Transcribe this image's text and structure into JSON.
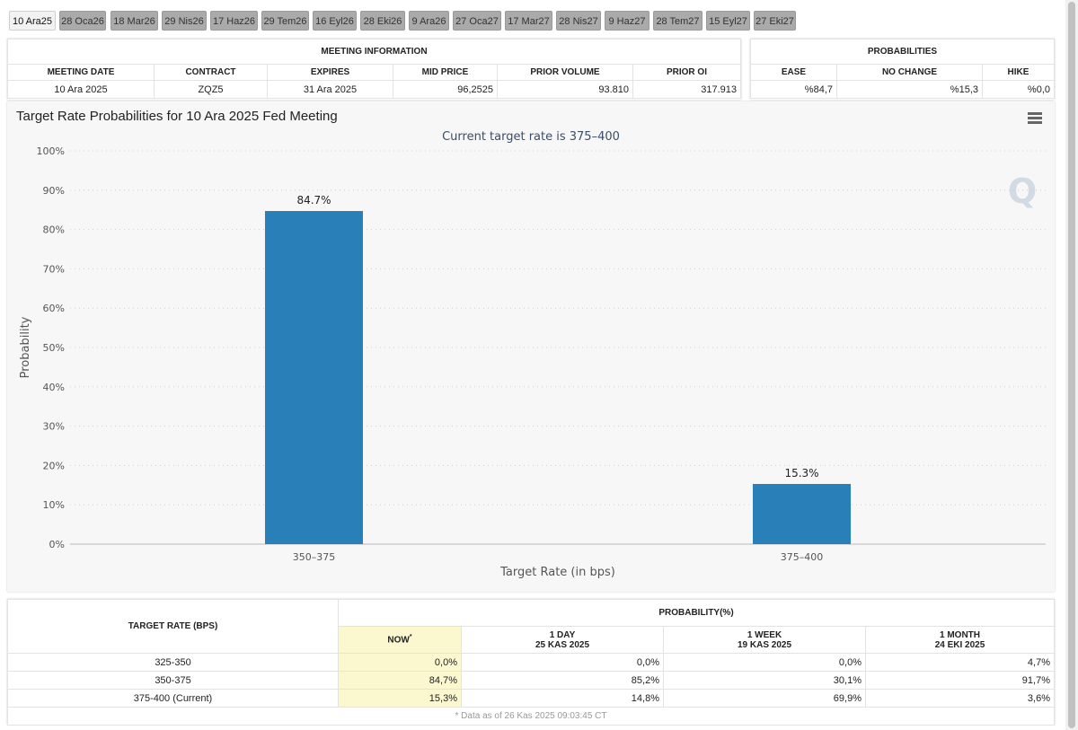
{
  "tabs": [
    {
      "label": "10 Ara25",
      "active": true
    },
    {
      "label": "28 Oca26"
    },
    {
      "label": "18 Mar26"
    },
    {
      "label": "29 Nis26"
    },
    {
      "label": "17 Haz26"
    },
    {
      "label": "29 Tem26"
    },
    {
      "label": "16 Eyl26"
    },
    {
      "label": "28 Eki26"
    },
    {
      "label": "9 Ara26"
    },
    {
      "label": "27 Oca27"
    },
    {
      "label": "17 Mar27"
    },
    {
      "label": "28 Nis27"
    },
    {
      "label": "9 Haz27"
    },
    {
      "label": "28 Tem27"
    },
    {
      "label": "15 Eyl27"
    },
    {
      "label": "27 Eki27"
    }
  ],
  "meeting": {
    "section_title": "MEETING INFORMATION",
    "headers": {
      "date": "MEETING DATE",
      "contract": "CONTRACT",
      "expires": "EXPIRES",
      "mid": "MID PRICE",
      "volume": "PRIOR VOLUME",
      "oi": "PRIOR OI"
    },
    "values": {
      "date": "10 Ara 2025",
      "contract": "ZQZ5",
      "expires": "31 Ara 2025",
      "mid": "96,2525",
      "volume": "93.810",
      "oi": "317.913"
    }
  },
  "probabilities": {
    "section_title": "PROBABILITIES",
    "headers": {
      "ease": "EASE",
      "nochange": "NO CHANGE",
      "hike": "HIKE"
    },
    "values": {
      "ease": "%84,7",
      "nochange": "%15,3",
      "hike": "%0,0"
    }
  },
  "chart": {
    "title": "Target Rate Probabilities for 10 Ara 2025 Fed Meeting",
    "subtitle": "Current target rate is 375–400",
    "watermark": "Q"
  },
  "chart_data": {
    "type": "bar",
    "title": "Target Rate Probabilities for 10 Ara 2025 Fed Meeting",
    "subtitle": "Current target rate is 375–400",
    "categories": [
      "350–375",
      "375–400"
    ],
    "values": [
      84.7,
      15.3
    ],
    "data_labels": [
      "84.7%",
      "15.3%"
    ],
    "xlabel": "Target Rate (in bps)",
    "ylabel": "Probability",
    "ylim": [
      0,
      100
    ],
    "yticks": [
      "0%",
      "10%",
      "20%",
      "30%",
      "40%",
      "50%",
      "60%",
      "70%",
      "80%",
      "90%",
      "100%"
    ],
    "grid": true,
    "bar_color": "#2980b9"
  },
  "bottom": {
    "rate_header": "TARGET RATE (BPS)",
    "prob_header": "PROBABILITY(%)",
    "cols": [
      {
        "label": "NOW",
        "sup": "*",
        "sub": ""
      },
      {
        "label": "1 DAY",
        "sub": "25 KAS 2025"
      },
      {
        "label": "1 WEEK",
        "sub": "19 KAS 2025"
      },
      {
        "label": "1 MONTH",
        "sub": "24 EKI 2025"
      }
    ],
    "rows": [
      {
        "rate": "325-350",
        "now": "0,0%",
        "day": "0,0%",
        "week": "0,0%",
        "month": "4,7%"
      },
      {
        "rate": "350-375",
        "now": "84,7%",
        "day": "85,2%",
        "week": "30,1%",
        "month": "91,7%"
      },
      {
        "rate": "375-400 (Current)",
        "now": "15,3%",
        "day": "14,8%",
        "week": "69,9%",
        "month": "3,6%"
      }
    ],
    "footnote": "* Data as of 26 Kas 2025 09:03:45 CT"
  }
}
